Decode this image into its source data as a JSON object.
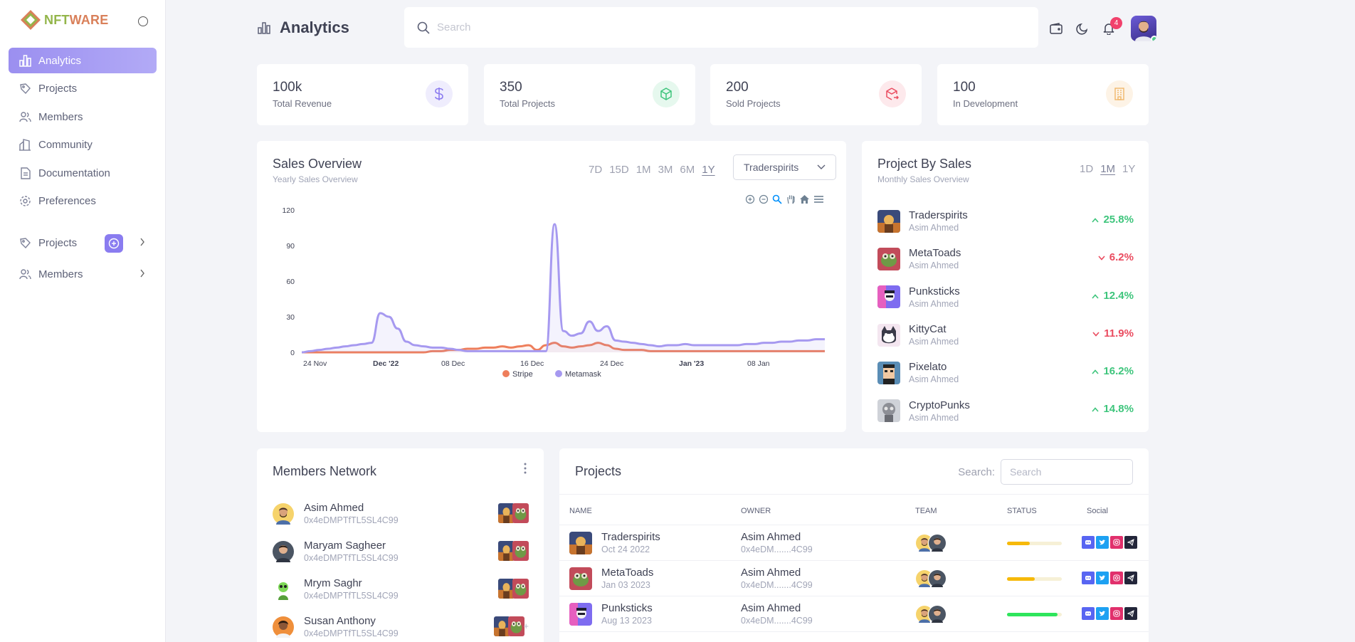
{
  "app": {
    "logo_prefix": "NFT",
    "logo_suffix": "WARE"
  },
  "sidebar": {
    "items": [
      {
        "label": "Analytics",
        "icon": "bar-chart-icon",
        "active": true
      },
      {
        "label": "Projects",
        "icon": "tag-icon"
      },
      {
        "label": "Members",
        "icon": "users-icon"
      },
      {
        "label": "Community",
        "icon": "community-icon"
      },
      {
        "label": "Documentation",
        "icon": "document-icon"
      },
      {
        "label": "Preferences",
        "icon": "gear-icon"
      }
    ],
    "groups": [
      {
        "label": "Projects",
        "icon": "tag-icon"
      },
      {
        "label": "Members",
        "icon": "users-icon"
      }
    ]
  },
  "header": {
    "title": "Analytics",
    "search_placeholder": "Search",
    "notification_count": "4"
  },
  "stats": [
    {
      "value": "100k",
      "label": "Total Revenue",
      "icon": "dollar-icon",
      "color": "#8c7cf0",
      "bg": "#efedfd"
    },
    {
      "value": "350",
      "label": "Total Projects",
      "icon": "cube-icon",
      "color": "#3ec57c",
      "bg": "#e6f8ee"
    },
    {
      "value": "200",
      "label": "Sold Projects",
      "icon": "box-arrow-icon",
      "color": "#ea4b5f",
      "bg": "#fde9ec"
    },
    {
      "value": "100",
      "label": "In Development",
      "icon": "building-icon",
      "color": "#f0b76a",
      "bg": "#fdf3e6"
    }
  ],
  "sales_overview": {
    "title": "Sales Overview",
    "subtitle": "Yearly Sales Overview",
    "ranges": [
      "7D",
      "15D",
      "1M",
      "3M",
      "6M",
      "1Y"
    ],
    "active_range": "1Y",
    "selected_project": "Traderspirits"
  },
  "chart_data": {
    "type": "area",
    "x_ticks": [
      "24 Nov",
      "Dec '22",
      "08 Dec",
      "16 Dec",
      "24 Dec",
      "Jan '23",
      "08 Jan"
    ],
    "y_ticks": [
      0,
      30,
      60,
      90,
      120
    ],
    "ylim": [
      0,
      120
    ],
    "legend_position": "bottom",
    "series": [
      {
        "name": "Stripe",
        "color": "#ee7e5b",
        "values": [
          0,
          0,
          0,
          0,
          0,
          0,
          0,
          0,
          0,
          0,
          0,
          0,
          0,
          0,
          0,
          1,
          1,
          2,
          2,
          3,
          3,
          4,
          4,
          5,
          4,
          5,
          6,
          2,
          6,
          8,
          5,
          4,
          5,
          6,
          8,
          6,
          3,
          2,
          2,
          2,
          1,
          1,
          1,
          1,
          1,
          1,
          1,
          1,
          1,
          1,
          1,
          1,
          1,
          1,
          1,
          1,
          1,
          1,
          1,
          1,
          1
        ]
      },
      {
        "name": "Metamask",
        "color": "#a699f0",
        "values": [
          0,
          1,
          2,
          3,
          4,
          5,
          6,
          7,
          8,
          33,
          30,
          20,
          9,
          6,
          5,
          4,
          4,
          3,
          2,
          1,
          1,
          1,
          1,
          1,
          1,
          1,
          1,
          1,
          1,
          108,
          18,
          14,
          16,
          26,
          18,
          22,
          10,
          9,
          8,
          7,
          6,
          5,
          6,
          6,
          7,
          6,
          6,
          6,
          6,
          6,
          6,
          7,
          7,
          8,
          8,
          9,
          9,
          10,
          10,
          11,
          11
        ]
      }
    ]
  },
  "project_by_sales": {
    "title": "Project By Sales",
    "subtitle": "Monthly Sales Overview",
    "ranges": [
      "1D",
      "1M",
      "1Y"
    ],
    "active_range": "1M",
    "items": [
      {
        "name": "Traderspirits",
        "owner": "Asim Ahmed",
        "pct": "25.8%",
        "trend": "up"
      },
      {
        "name": "MetaToads",
        "owner": "Asim Ahmed",
        "pct": "6.2%",
        "trend": "down"
      },
      {
        "name": "Punksticks",
        "owner": "Asim Ahmed",
        "pct": "12.4%",
        "trend": "up"
      },
      {
        "name": "KittyCat",
        "owner": "Asim Ahmed",
        "pct": "11.9%",
        "trend": "down"
      },
      {
        "name": "Pixelato",
        "owner": "Asim Ahmed",
        "pct": "16.2%",
        "trend": "up"
      },
      {
        "name": "CryptoPunks",
        "owner": "Asim Ahmed",
        "pct": "14.8%",
        "trend": "up"
      }
    ]
  },
  "members_network": {
    "title": "Members Network",
    "members": [
      {
        "name": "Asim Ahmed",
        "address": "0x4eDMPTfTL5SL4C99"
      },
      {
        "name": "Maryam Sagheer",
        "address": "0x4eDMPTfTL5SL4C99"
      },
      {
        "name": "Mrym Saghr",
        "address": "0x4eDMPTfTL5SL4C99"
      },
      {
        "name": "Susan Anthony",
        "address": "0x4eDMPTfTL5SL4C99"
      }
    ]
  },
  "projects_table": {
    "title": "Projects",
    "search_label": "Search:",
    "search_placeholder": "Search",
    "columns": [
      "NAME",
      "OWNER",
      "TEAM",
      "STATUS",
      "Social"
    ],
    "rows": [
      {
        "name": "Traderspirits",
        "date": "Oct 24 2022",
        "owner": "Asim Ahmed",
        "address": "0x4eDM.......4C99",
        "progress": 0.42,
        "status_color": "#f6b90a"
      },
      {
        "name": "MetaToads",
        "date": "Jan 03 2023",
        "owner": "Asim Ahmed",
        "address": "0x4eDM.......4C99",
        "progress": 0.5,
        "status_color": "#f6b90a"
      },
      {
        "name": "Punksticks",
        "date": "Aug 13 2023",
        "owner": "Asim Ahmed",
        "address": "0x4eDM.......4C99",
        "progress": 0.92,
        "status_color": "#2ee55c"
      }
    ]
  }
}
